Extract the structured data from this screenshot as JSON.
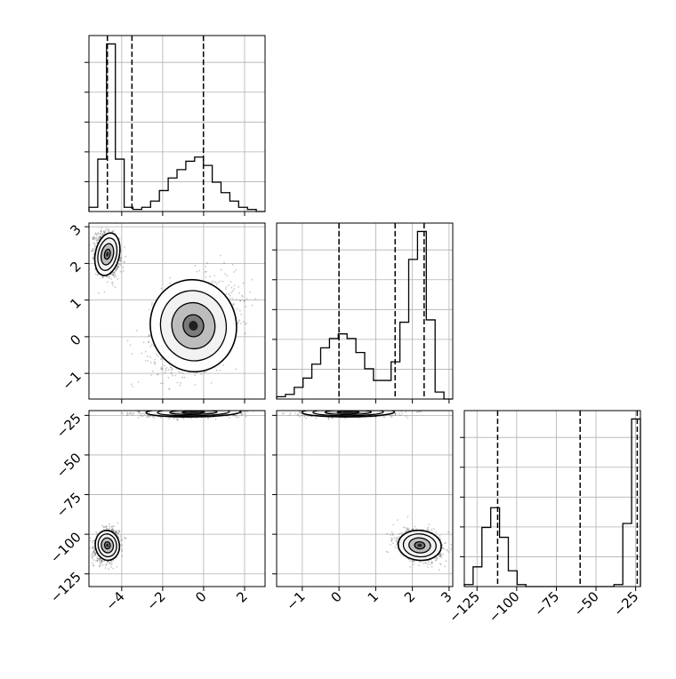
{
  "chart_data": {
    "type": "corner",
    "params": [
      {
        "name": "",
        "range": [
          -5.6,
          3.0
        ],
        "ticks": [
          "−4",
          "−2",
          "0",
          "2"
        ],
        "tick_values": [
          -4,
          -2,
          0,
          2
        ]
      },
      {
        "name": "",
        "range": [
          -1.7,
          3.1
        ],
        "ticks": [
          "−1",
          "0",
          "1",
          "2",
          "3"
        ],
        "tick_values": [
          -1,
          0,
          1,
          2,
          3
        ]
      },
      {
        "name": "",
        "range": [
          -133,
          -22
        ],
        "ticks": [
          "−125",
          "−100",
          "−75",
          "−50",
          "−25"
        ],
        "tick_values": [
          -125,
          -100,
          -75,
          -50,
          -25
        ]
      }
    ],
    "param1_y_ticks": [
      "−1",
      "0",
      "1",
      "2",
      "3"
    ],
    "param2_y_ticks": [
      "−125",
      "−100",
      "−75",
      "−50",
      "−25"
    ],
    "histograms": [
      {
        "param": 0,
        "bin_edges": [
          -5.6,
          -5.17,
          -4.74,
          -4.31,
          -3.88,
          -3.45,
          -3.02,
          -2.59,
          -2.16,
          -1.73,
          -1.3,
          -0.87,
          -0.44,
          -0.01,
          0.42,
          0.85,
          1.28,
          1.71,
          2.14,
          2.57,
          3.0
        ],
        "counts": [
          2,
          25,
          80,
          25,
          2,
          1,
          2,
          5,
          10,
          16,
          20,
          24,
          26,
          22,
          14,
          9,
          5,
          2,
          1,
          0
        ],
        "quantiles": [
          -4.7,
          -3.5,
          -0.01
        ]
      },
      {
        "param": 1,
        "bin_edges": [
          -1.7,
          -1.46,
          -1.22,
          -0.98,
          -0.74,
          -0.5,
          -0.26,
          -0.02,
          0.22,
          0.46,
          0.7,
          0.94,
          1.18,
          1.42,
          1.66,
          1.9,
          2.14,
          2.38,
          2.62,
          2.86,
          3.1
        ],
        "counts": [
          1,
          2,
          5,
          9,
          15,
          22,
          26,
          28,
          26,
          20,
          13,
          8,
          8,
          16,
          33,
          60,
          72,
          34,
          3,
          0
        ],
        "quantiles": [
          0.0,
          1.53,
          2.32
        ]
      },
      {
        "param": 2,
        "bin_edges": [
          -133,
          -127.45,
          -121.9,
          -116.35,
          -110.8,
          -105.25,
          -99.7,
          -94.15,
          -88.6,
          -83.05,
          -77.5,
          -71.95,
          -66.4,
          -60.85,
          -55.3,
          -49.75,
          -44.2,
          -38.65,
          -33.1,
          -27.55,
          -22.0
        ],
        "counts": [
          1,
          10,
          30,
          40,
          25,
          8,
          1,
          0,
          0,
          0,
          0,
          0,
          0,
          0,
          0,
          0,
          0,
          1,
          32,
          85
        ],
        "quantiles": [
          -112,
          -60,
          -24
        ]
      }
    ],
    "scatter_panels": [
      {
        "x_param": 0,
        "y_param": 1,
        "clusters": [
          {
            "mean_x": -4.7,
            "mean_y": 2.25,
            "sd_x": 0.28,
            "sd_y": 0.28,
            "corr": -0.2,
            "weight": 0.5
          },
          {
            "mean_x": -0.5,
            "mean_y": 0.3,
            "sd_x": 1.0,
            "sd_y": 0.6,
            "corr": 0.35,
            "weight": 0.5
          }
        ]
      },
      {
        "x_param": 0,
        "y_param": 2,
        "clusters": [
          {
            "mean_x": -4.7,
            "mean_y": -107,
            "sd_x": 0.28,
            "sd_y": 4.5,
            "corr": 0.2,
            "weight": 0.5
          },
          {
            "mean_x": -0.5,
            "mean_y": -23,
            "sd_x": 1.1,
            "sd_y": 1.4,
            "corr": 0.2,
            "weight": 0.5
          }
        ]
      },
      {
        "x_param": 1,
        "y_param": 2,
        "clusters": [
          {
            "mean_x": 0.25,
            "mean_y": -23,
            "sd_x": 0.6,
            "sd_y": 1.4,
            "corr": 0.1,
            "weight": 0.5
          },
          {
            "mean_x": 2.2,
            "mean_y": -107,
            "sd_x": 0.28,
            "sd_y": 4.5,
            "corr": -0.2,
            "weight": 0.5
          }
        ]
      }
    ],
    "grid": true,
    "quantile_line_style": "dashed",
    "colors": {
      "line": "#000000",
      "grid": "#b0b0b0",
      "points": "#000000",
      "fill_levels": [
        "#ffffff",
        "#f2f2f2",
        "#bdbdbd",
        "#7a7a7a",
        "#202020"
      ]
    }
  }
}
